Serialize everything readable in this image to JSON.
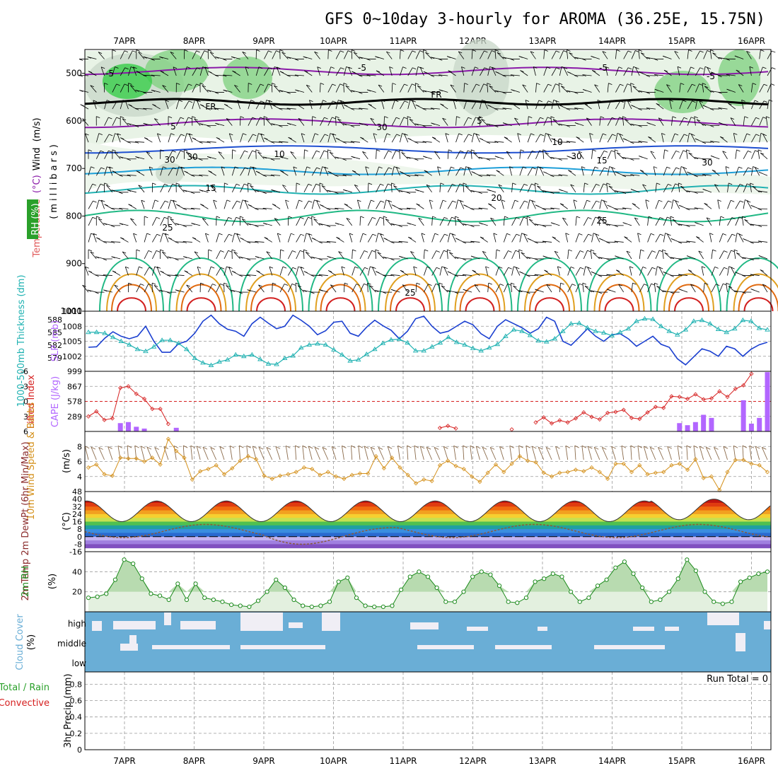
{
  "title": "GFS 0~10day 3-hourly for AROMA (36.25E, 15.75N)",
  "colors": {
    "temperature": "#e05a5a",
    "wind": "#000000",
    "rh": "#2aa02a",
    "thickness": "#20b2b2",
    "slp": "#1a3fd0",
    "lifted": "#d62020",
    "cape": "#b266ff",
    "wind10m": "#d4901a",
    "rh2m": "#1c8a1c",
    "cloud": "#6aaed6",
    "cloudfree": "#f0eef5",
    "precip_total": "#2aa02a",
    "precip_conv": "#d62020",
    "temp_lines": {
      "-5": "#8a1aa8",
      "FR": "#000000",
      "10": "#1e4fd0",
      "15": "#1e9fd8",
      "20": "#22b2b2",
      "25": "#20b884",
      "30": "#e0a020",
      "35": "#e06a10",
      "40": "#d22020"
    }
  },
  "date_labels": [
    "7APR",
    "8APR",
    "9APR",
    "10APR",
    "11APR",
    "12APR",
    "13APR",
    "14APR",
    "15APR",
    "16APR"
  ],
  "panels": {
    "upper": {
      "label_wind": "Wind",
      "label_wind_units": "(m/s)",
      "label_temp": "Temperature",
      "label_temp_units": "(°C)",
      "label_rh": "RH (%)",
      "label_pressure": "(millibars)",
      "y_ticks": [
        "500",
        "600",
        "700",
        "800",
        "900",
        "1000"
      ],
      "contour_labels": [
        "-5",
        "-5",
        "-5",
        "-5",
        "5",
        "FR",
        "FR",
        "10",
        "10",
        "15",
        "15",
        "20",
        "25",
        "25",
        "25",
        "30",
        "30",
        "30",
        "30",
        "30",
        "5"
      ]
    },
    "slp": {
      "label_thickness": "1000-500mb Thickness (dm)",
      "label_slp": "SLP (mb)",
      "left_ticks": [
        "588",
        "585",
        "582",
        "579"
      ],
      "right_ticks": [
        "1011",
        "1008",
        "1005",
        "1002",
        "999"
      ]
    },
    "cape": {
      "label_li": "Lifted Index",
      "label_cape": "CAPE (J/kg)",
      "left_ticks": [
        "-6",
        "-3",
        "0",
        "3",
        "6"
      ],
      "right_ticks": [
        "867",
        "578",
        "289"
      ]
    },
    "wind10m": {
      "label": "10m Wind Speed & Barbs",
      "label_units": "(m/s)",
      "y_ticks": [
        "8",
        "6",
        "4"
      ]
    },
    "temp2m": {
      "label": "2m Temp 2m DewPt (6hr Min/Max)",
      "label_units": "(°C)",
      "y_ticks": [
        "48",
        "40",
        "32",
        "24",
        "16",
        "8",
        "0",
        "-8",
        "-16"
      ]
    },
    "rh2m": {
      "label": "2m RH",
      "label_units": "(%)",
      "y_ticks": [
        "40",
        "20"
      ]
    },
    "cloud": {
      "label": "Cloud Cover",
      "label_units": "(%)",
      "levels": [
        "high",
        "middle",
        "low"
      ]
    },
    "precip": {
      "label": "3hr Precip (mm)",
      "label_total": "Total / Rain",
      "label_conv": "Convective",
      "run_total": "Run Total = 0",
      "y_ticks": [
        "0.8",
        "0.6",
        "0.4",
        "0.2",
        "0"
      ]
    }
  },
  "chart_data": [
    {
      "type": "line",
      "name": "SLP (mb) and 1000-500mb Thickness (dm)",
      "x_start": "2024-04-06 15Z",
      "x_step_hours": 3,
      "series": [
        {
          "name": "SLP (mb)",
          "ylim": [
            999,
            1011
          ],
          "values": [
            1003.8,
            1003.9,
            1005.6,
            1006.9,
            1006.0,
            1005.5,
            1006.0,
            1008.0,
            1005.0,
            1002.8,
            1002.8,
            1004.5,
            1005.0,
            1006.6,
            1009.0,
            1010.2,
            1008.5,
            1007.4,
            1007.0,
            1006.0,
            1008.5,
            1009.8,
            1008.6,
            1007.5,
            1008.0,
            1010.2,
            1009.2,
            1008.0,
            1006.3,
            1007.1,
            1008.8,
            1009.0,
            1006.6,
            1006.0,
            1007.8,
            1009.2,
            1008.1,
            1007.2,
            1005.5,
            1007.0,
            1009.5,
            1010.0,
            1008.0,
            1006.6,
            1007.0,
            1008.0,
            1009.0,
            1008.3,
            1006.5,
            1005.5,
            1008.0,
            1009.3,
            1008.5,
            1007.7,
            1006.6,
            1007.5,
            1009.8,
            1009.0,
            1005.0,
            1004.2,
            1005.8,
            1007.5,
            1006.0,
            1005.0,
            1006.3,
            1006.5,
            1005.5,
            1004.0,
            1005.0,
            1006.0,
            1004.4,
            1003.8,
            1001.5,
            1000.3,
            1001.9,
            1003.5,
            1003.0,
            1002.0,
            1004.0,
            1003.5,
            1002.0,
            1003.4,
            1004.3,
            1004.8
          ]
        },
        {
          "name": "1000-500mb Thickness (dm)",
          "ylim": [
            578,
            590
          ],
          "values": [
            585.8,
            585.8,
            585.6,
            584.8,
            584.0,
            583.3,
            582.4,
            582.0,
            582.9,
            584.2,
            584.2,
            583.6,
            582.4,
            580.6,
            579.7,
            579.2,
            579.9,
            580.3,
            581.3,
            581.0,
            581.3,
            580.4,
            579.5,
            579.4,
            580.6,
            581.1,
            582.7,
            583.3,
            583.5,
            583.3,
            582.3,
            581.3,
            580.1,
            580.3,
            581.4,
            582.4,
            583.6,
            584.3,
            584.4,
            583.7,
            582.1,
            582.1,
            582.9,
            583.7,
            584.8,
            583.8,
            583.3,
            582.6,
            582.1,
            582.7,
            583.4,
            585.0,
            586.3,
            586.0,
            585.2,
            584.1,
            583.9,
            584.5,
            586.0,
            587.5,
            587.6,
            586.7,
            586.0,
            585.7,
            585.1,
            585.8,
            586.5,
            588.0,
            588.5,
            588.4,
            587.0,
            586.0,
            585.3,
            586.3,
            588.0,
            588.2,
            587.5,
            586.4,
            585.8,
            586.5,
            588.2,
            588.0,
            586.6,
            586.3
          ]
        }
      ]
    },
    {
      "type": "line",
      "name": "Lifted Index",
      "ylim": [
        6,
        -6
      ],
      "x_start": "2024-04-06 15Z",
      "x_step_hours": 3,
      "values": [
        3.0,
        2.0,
        3.7,
        3.4,
        -2.7,
        -3.0,
        -1.5,
        -0.5,
        1.5,
        1.5,
        4.5,
        null,
        null,
        null,
        null,
        null,
        null,
        null,
        null,
        null,
        null,
        null,
        null,
        null,
        null,
        null,
        null,
        null,
        null,
        null,
        null,
        null,
        null,
        null,
        null,
        null,
        null,
        null,
        null,
        null,
        null,
        null,
        null,
        null,
        5.3,
        4.9,
        5.4,
        null,
        null,
        null,
        null,
        null,
        null,
        5.6,
        null,
        null,
        4.2,
        3.2,
        4.4,
        3.8,
        4.2,
        3.4,
        2.2,
        3.1,
        3.6,
        2.3,
        2.1,
        1.7,
        3.3,
        3.5,
        2.2,
        1.1,
        1.3,
        -1.0,
        -0.9,
        -0.5,
        -1.4,
        -0.4,
        -0.6,
        -2.0,
        -0.9,
        -2.5,
        -3.2,
        -5.5
      ]
    },
    {
      "type": "bar",
      "name": "CAPE (J/kg)",
      "ylim": [
        0,
        1156
      ],
      "x_start": "2024-04-06 15Z",
      "x_step_hours": 3,
      "values": [
        0,
        0,
        0,
        0,
        160,
        180,
        90,
        55,
        0,
        0,
        0,
        70,
        0,
        0,
        0,
        0,
        0,
        0,
        0,
        0,
        0,
        0,
        0,
        0,
        0,
        0,
        0,
        0,
        0,
        0,
        0,
        0,
        0,
        0,
        0,
        0,
        0,
        0,
        0,
        0,
        0,
        0,
        0,
        0,
        0,
        0,
        0,
        0,
        0,
        0,
        0,
        0,
        0,
        0,
        0,
        0,
        0,
        0,
        0,
        0,
        0,
        0,
        0,
        0,
        0,
        0,
        0,
        0,
        0,
        0,
        0,
        0,
        0,
        0,
        160,
        120,
        180,
        320,
        260,
        0,
        0,
        0,
        600,
        150,
        260,
        1140
      ]
    },
    {
      "type": "line",
      "name": "10m Wind Speed (m/s)",
      "ylim": [
        2,
        10
      ],
      "x_start": "2024-04-06 15Z",
      "x_step_hours": 3,
      "values": [
        5.2,
        5.6,
        4.3,
        4.1,
        6.5,
        6.4,
        6.4,
        6.0,
        6.5,
        5.6,
        9.0,
        7.4,
        6.5,
        3.6,
        4.7,
        5.0,
        5.5,
        4.3,
        5.1,
        6.1,
        6.7,
        6.3,
        4.1,
        3.7,
        4.1,
        4.3,
        4.6,
        5.2,
        5.0,
        4.2,
        4.6,
        4.0,
        3.7,
        4.2,
        4.4,
        4.4,
        6.7,
        5.1,
        6.5,
        5.2,
        4.2,
        3.1,
        3.6,
        3.4,
        5.5,
        6.1,
        5.4,
        5.0,
        4.0,
        3.3,
        4.5,
        5.6,
        4.6,
        5.7,
        6.7,
        6.1,
        5.9,
        4.5,
        4.0,
        4.5,
        4.6,
        4.9,
        4.7,
        5.2,
        4.6,
        3.7,
        5.7,
        5.7,
        4.6,
        5.5,
        4.3,
        4.5,
        4.6,
        5.5,
        5.7,
        4.9,
        6.3,
        3.8,
        4.0,
        2.2,
        4.6,
        6.2,
        6.2,
        5.7,
        5.5,
        4.6
      ]
    },
    {
      "type": "line",
      "name": "2m RH (%)",
      "ylim": [
        0,
        60
      ],
      "x_start": "2024-04-06 15Z",
      "x_step_hours": 3,
      "values": [
        14,
        15,
        18,
        32,
        52,
        48,
        33,
        18,
        16,
        12,
        28,
        12,
        28,
        14,
        12,
        10,
        7,
        6,
        5,
        11,
        20,
        32,
        24,
        12,
        6,
        5,
        6,
        10,
        30,
        34,
        14,
        6,
        5,
        5,
        6,
        22,
        35,
        40,
        35,
        24,
        10,
        10,
        20,
        35,
        40,
        37,
        26,
        10,
        9,
        14,
        30,
        33,
        38,
        35,
        20,
        10,
        14,
        26,
        32,
        44,
        50,
        38,
        24,
        10,
        12,
        20,
        33,
        52,
        41,
        20,
        10,
        8,
        10,
        30,
        34,
        38,
        40
      ]
    }
  ]
}
